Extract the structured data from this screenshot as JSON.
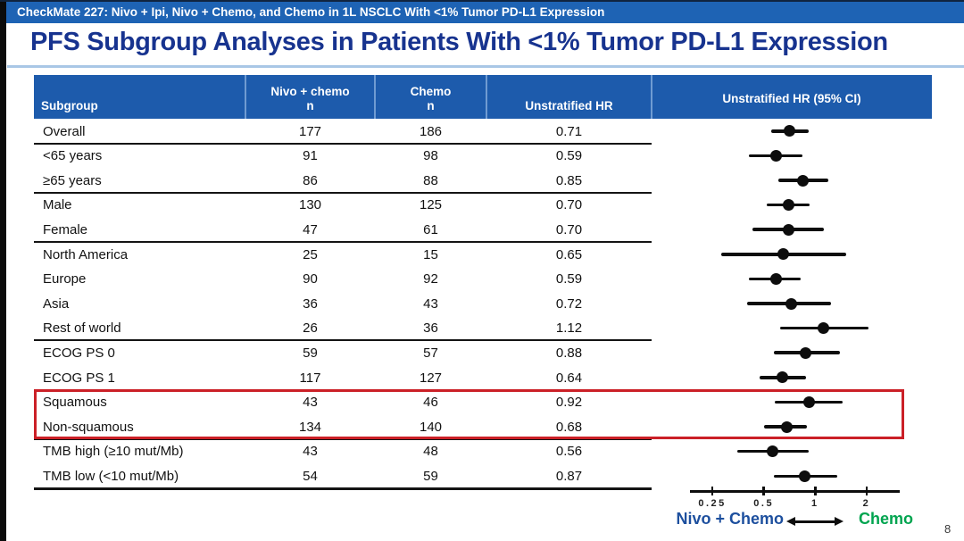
{
  "banner": {
    "text": "CheckMate 227: Nivo + Ipi, Nivo + Chemo, and Chemo in 1L NSCLC With <1% Tumor PD-L1 Expression"
  },
  "title": "PFS Subgroup Analyses in Patients With <1% Tumor PD-L1 Expression",
  "page_number": "8",
  "colors": {
    "banner_bg": "#1e63b4",
    "header_bg": "#1d5bac",
    "title_text": "#17338f",
    "highlight_box": "#cb2027",
    "nivo_chemo_label": "#1d4f9e",
    "chemo_label": "#00a44f",
    "marker": "#0d0d0d"
  },
  "table": {
    "headers": {
      "subgroup": "Subgroup",
      "nivo_chemo": "Nivo + chemo",
      "chemo": "Chemo",
      "n": "n",
      "unstratified_hr": "Unstratified HR",
      "unstratified_hr_ci": "Unstratified HR (95% CI)"
    }
  },
  "chart_data": {
    "type": "forest",
    "title": "Unstratified HR (95% CI)",
    "x_scale": "log2",
    "axis_ticks": [
      0.25,
      0.5,
      1,
      2
    ],
    "axis_tick_labels": [
      "0.25",
      "0.5",
      "1",
      "2"
    ],
    "xlim": [
      0.22,
      2.3
    ],
    "grid": false,
    "favors_left_label": "Nivo + Chemo",
    "favors_right_label": "Chemo",
    "highlight_note": "Squamous and Non-squamous rows outlined in red",
    "rows": [
      {
        "subgroup": "Overall",
        "n_nivo_chemo": 177,
        "n_chemo": 186,
        "hr": 0.71,
        "ci_low": 0.55,
        "ci_high": 0.92,
        "highlighted": false,
        "separator_after": true
      },
      {
        "subgroup": "<65 years",
        "n_nivo_chemo": 91,
        "n_chemo": 98,
        "hr": 0.59,
        "ci_low": 0.41,
        "ci_high": 0.84,
        "highlighted": false,
        "separator_after": false
      },
      {
        "subgroup": "≥65 years",
        "n_nivo_chemo": 86,
        "n_chemo": 88,
        "hr": 0.85,
        "ci_low": 0.61,
        "ci_high": 1.2,
        "highlighted": false,
        "separator_after": true
      },
      {
        "subgroup": "Male",
        "n_nivo_chemo": 130,
        "n_chemo": 125,
        "hr": 0.7,
        "ci_low": 0.52,
        "ci_high": 0.93,
        "highlighted": false,
        "separator_after": false
      },
      {
        "subgroup": "Female",
        "n_nivo_chemo": 47,
        "n_chemo": 61,
        "hr": 0.7,
        "ci_low": 0.43,
        "ci_high": 1.13,
        "highlighted": false,
        "separator_after": true
      },
      {
        "subgroup": "North America",
        "n_nivo_chemo": 25,
        "n_chemo": 15,
        "hr": 0.65,
        "ci_low": 0.28,
        "ci_high": 1.52,
        "highlighted": false,
        "separator_after": false
      },
      {
        "subgroup": "Europe",
        "n_nivo_chemo": 90,
        "n_chemo": 92,
        "hr": 0.59,
        "ci_low": 0.41,
        "ci_high": 0.82,
        "highlighted": false,
        "separator_after": false
      },
      {
        "subgroup": "Asia",
        "n_nivo_chemo": 36,
        "n_chemo": 43,
        "hr": 0.72,
        "ci_low": 0.4,
        "ci_high": 1.24,
        "highlighted": false,
        "separator_after": false
      },
      {
        "subgroup": "Rest of world",
        "n_nivo_chemo": 26,
        "n_chemo": 36,
        "hr": 1.12,
        "ci_low": 0.62,
        "ci_high": 2.04,
        "highlighted": false,
        "separator_after": true
      },
      {
        "subgroup": "ECOG PS 0",
        "n_nivo_chemo": 59,
        "n_chemo": 57,
        "hr": 0.88,
        "ci_low": 0.57,
        "ci_high": 1.4,
        "highlighted": false,
        "separator_after": false
      },
      {
        "subgroup": "ECOG PS 1",
        "n_nivo_chemo": 117,
        "n_chemo": 127,
        "hr": 0.64,
        "ci_low": 0.47,
        "ci_high": 0.88,
        "highlighted": false,
        "separator_after": true
      },
      {
        "subgroup": "Squamous",
        "n_nivo_chemo": 43,
        "n_chemo": 46,
        "hr": 0.92,
        "ci_low": 0.58,
        "ci_high": 1.45,
        "highlighted": true,
        "separator_after": false
      },
      {
        "subgroup": "Non-squamous",
        "n_nivo_chemo": 134,
        "n_chemo": 140,
        "hr": 0.68,
        "ci_low": 0.5,
        "ci_high": 0.89,
        "highlighted": true,
        "separator_after": true
      },
      {
        "subgroup": "TMB high (≥10 mut/Mb)",
        "n_nivo_chemo": 43,
        "n_chemo": 48,
        "hr": 0.56,
        "ci_low": 0.35,
        "ci_high": 0.92,
        "highlighted": false,
        "separator_after": false
      },
      {
        "subgroup": "TMB low (<10 mut/Mb)",
        "n_nivo_chemo": 54,
        "n_chemo": 59,
        "hr": 0.87,
        "ci_low": 0.57,
        "ci_high": 1.34,
        "highlighted": false,
        "separator_after": true
      }
    ]
  }
}
